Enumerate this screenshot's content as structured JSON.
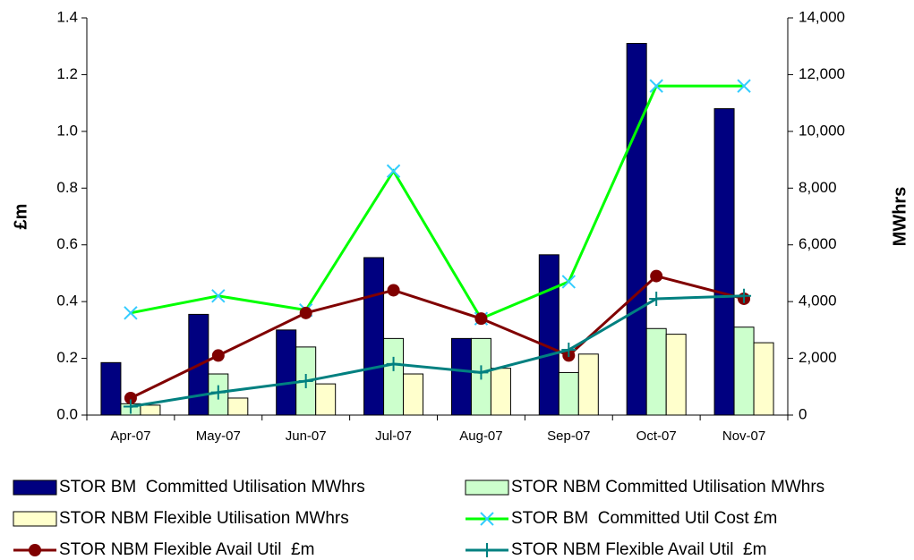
{
  "chart_data": {
    "type": "bar",
    "categories": [
      "Apr-07",
      "May-07",
      "Jun-07",
      "Jul-07",
      "Aug-07",
      "Sep-07",
      "Oct-07",
      "Nov-07"
    ],
    "y_label": "£m",
    "y2_label": "MWhrs",
    "ylim": [
      0,
      1.4
    ],
    "yticks": [
      {
        "value": 0,
        "label": "0.0"
      },
      0.2,
      0.4,
      0.6,
      0.8,
      {
        "value": 1,
        "label": "1.0"
      },
      1.2,
      1.4
    ],
    "y2lim": [
      0,
      14000
    ],
    "y2ticks": [
      0,
      {
        "value": 2000,
        "label": "2,000"
      },
      {
        "value": 4000,
        "label": "4,000"
      },
      {
        "value": 6000,
        "label": "6,000"
      },
      {
        "value": 8000,
        "label": "8,000"
      },
      {
        "value": 10000,
        "label": "10,000"
      },
      {
        "value": 12000,
        "label": "12,000"
      },
      {
        "value": 14000,
        "label": "14,000"
      }
    ],
    "series": [
      {
        "name": "STOR BM  Committed Utilisation MWhrs",
        "type": "bar",
        "axis": "y2",
        "color": "#000080",
        "values": [
          1850,
          3550,
          3000,
          5550,
          2700,
          5650,
          13100,
          10800
        ]
      },
      {
        "name": "STOR NBM Committed Utilisation MWhrs",
        "type": "bar",
        "axis": "y2",
        "color": "#ccffcc",
        "values": [
          400,
          1450,
          2400,
          2700,
          2700,
          1500,
          3050,
          3100
        ]
      },
      {
        "name": "STOR NBM Flexible Utilisation MWhrs",
        "type": "bar",
        "axis": "y2",
        "color": "#ffffcc",
        "values": [
          350,
          600,
          1100,
          1450,
          1650,
          2150,
          2850,
          2550
        ]
      },
      {
        "name": "STOR BM  Committed Util Cost £m",
        "type": "line",
        "axis": "y",
        "color": "#00ff00",
        "marker": "x",
        "marker_color": "#33ccff",
        "values": [
          0.36,
          0.42,
          0.37,
          0.86,
          0.34,
          0.47,
          1.16,
          1.16
        ]
      },
      {
        "name": "STOR NBM Flexible Avail Util  £m",
        "type": "line",
        "axis": "y",
        "color": "#800000",
        "marker": "circle",
        "marker_color": "#800000",
        "values": [
          0.06,
          0.21,
          0.36,
          0.44,
          0.34,
          0.21,
          0.49,
          0.41
        ]
      },
      {
        "name": "STOR NBM Flexible Avail Util  £m",
        "type": "line",
        "axis": "y",
        "color": "#008080",
        "marker": "plus",
        "marker_color": "#008080",
        "values": [
          0.03,
          0.08,
          0.12,
          0.18,
          0.15,
          0.23,
          0.41,
          0.42
        ]
      }
    ]
  }
}
